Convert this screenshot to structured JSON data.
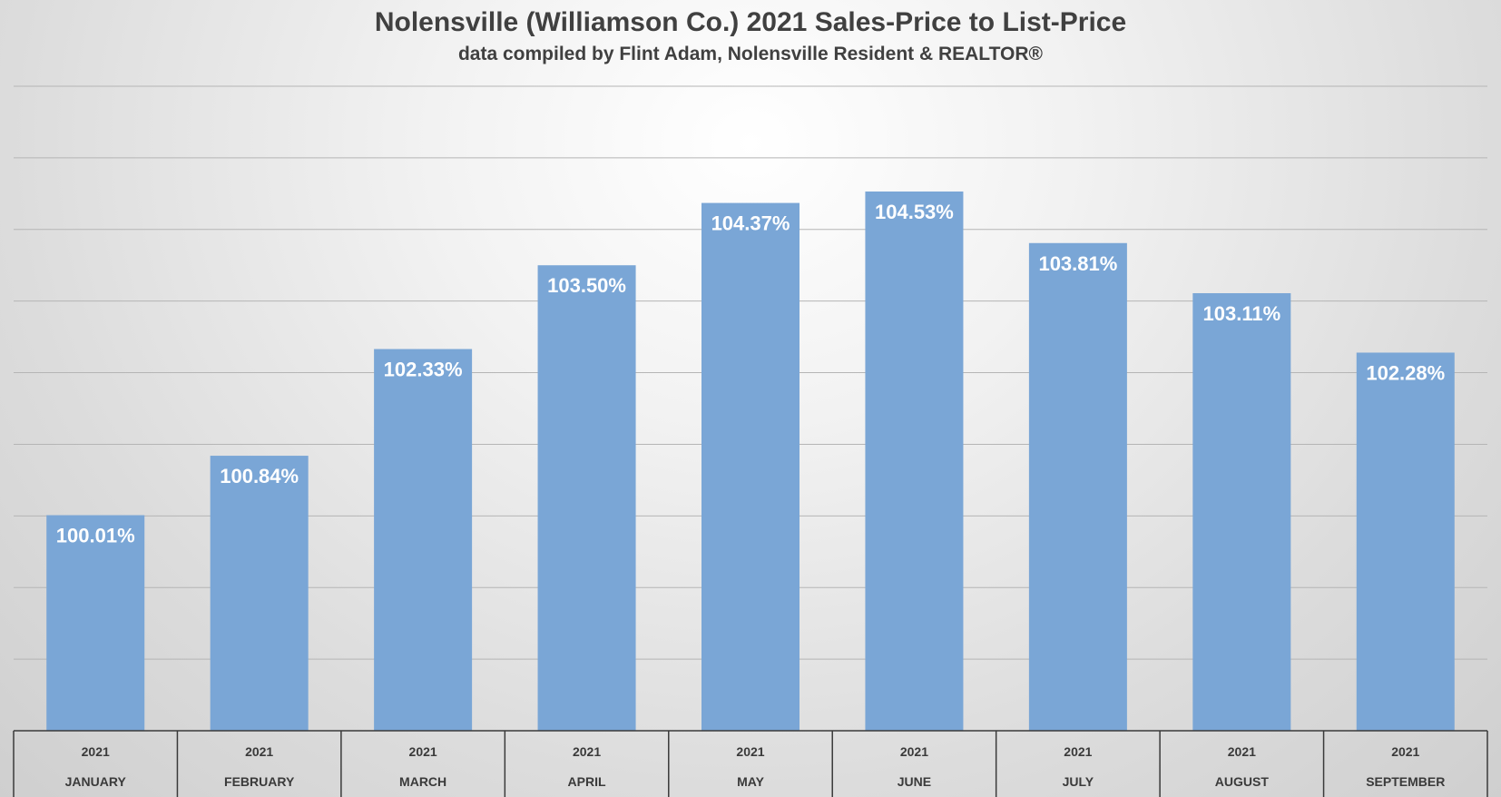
{
  "chart_data": {
    "type": "bar",
    "title": "Nolensville (Williamson Co.) 2021 Sales-Price to List-Price",
    "subtitle": "data compiled by Flint Adam, Nolensville Resident & REALTOR®",
    "categories": [
      {
        "year": "2021",
        "month": "JANUARY"
      },
      {
        "year": "2021",
        "month": "FEBRUARY"
      },
      {
        "year": "2021",
        "month": "MARCH"
      },
      {
        "year": "2021",
        "month": "APRIL"
      },
      {
        "year": "2021",
        "month": "MAY"
      },
      {
        "year": "2021",
        "month": "JUNE"
      },
      {
        "year": "2021",
        "month": "JULY"
      },
      {
        "year": "2021",
        "month": "AUGUST"
      },
      {
        "year": "2021",
        "month": "SEPTEMBER"
      }
    ],
    "values": [
      100.01,
      100.84,
      102.33,
      103.5,
      104.37,
      104.53,
      103.81,
      103.11,
      102.28
    ],
    "value_labels": [
      "100.01%",
      "100.84%",
      "102.33%",
      "103.50%",
      "104.37%",
      "104.53%",
      "103.81%",
      "103.11%",
      "102.28%"
    ],
    "ylim": [
      97.0,
      106.0
    ],
    "grid": true,
    "legend": "none",
    "bar_color": "#7aa6d6"
  }
}
